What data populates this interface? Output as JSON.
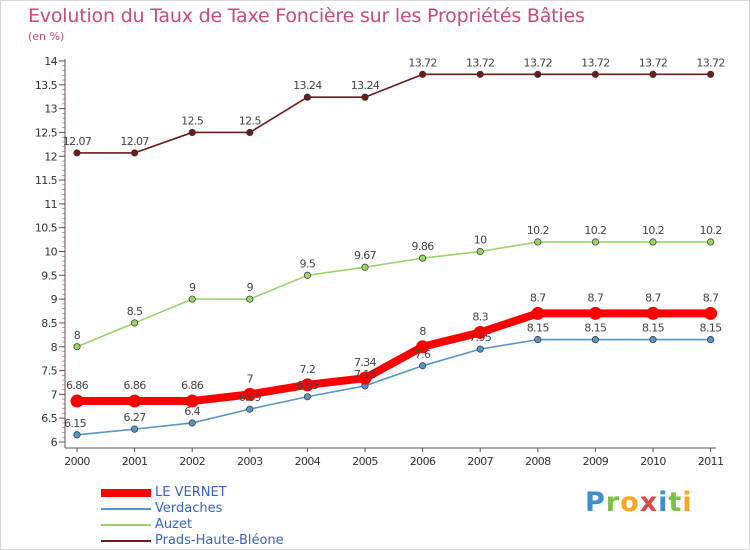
{
  "title": "Evolution du Taux de Taxe Foncière sur les Propriétés Bâties",
  "unit_label": "(en %)",
  "logo_text": "Proxiti",
  "chart_data": {
    "type": "line",
    "title": "Evolution du Taux de Taxe Foncière sur les Propriétés Bâties",
    "ylabel": "(en %)",
    "xlabel": "",
    "x": [
      "2000",
      "2001",
      "2002",
      "2003",
      "2004",
      "2005",
      "2006",
      "2007",
      "2008",
      "2009",
      "2010",
      "2011"
    ],
    "ylim": [
      6,
      14
    ],
    "yticks": [
      "6",
      "6.5",
      "7",
      "7.5",
      "8",
      "8.5",
      "9",
      "9.5",
      "10",
      "10.5",
      "11",
      "11.5",
      "12",
      "12.5",
      "13",
      "13.5",
      "14"
    ],
    "grid": false,
    "legend_position": "bottom-left",
    "series": [
      {
        "name": "Prads-Haute-Bléone",
        "color": "#6b1b1b",
        "values": [
          12.07,
          12.07,
          12.5,
          12.5,
          13.24,
          13.24,
          13.72,
          13.72,
          13.72,
          13.72,
          13.72,
          13.72
        ],
        "labels": [
          "12.07",
          "12.07",
          "12.5",
          "12.5",
          "13.24",
          "13.24",
          "13.72",
          "13.72",
          "13.72",
          "13.72",
          "13.72",
          "13.72"
        ]
      },
      {
        "name": "Auzet",
        "color": "#99d36a",
        "values": [
          8,
          8.5,
          9,
          9,
          9.5,
          9.67,
          9.86,
          10,
          10.2,
          10.2,
          10.2,
          10.2
        ],
        "labels": [
          "8",
          "8.5",
          "9",
          "9",
          "9.5",
          "9.67",
          "9.86",
          "10",
          "10.2",
          "10.2",
          "10.2",
          "10.2"
        ]
      },
      {
        "name": "Verdaches",
        "color": "#5a93c8",
        "values": [
          6.15,
          6.27,
          6.4,
          6.69,
          6.95,
          7.18,
          7.6,
          7.95,
          8.15,
          8.15,
          8.15,
          8.15
        ],
        "labels": [
          "6.15",
          "6.27",
          "6.4",
          "6.69",
          "6.95",
          "7.18",
          "7.6",
          "7.95",
          "8.15",
          "8.15",
          "8.15",
          "8.15"
        ]
      },
      {
        "name": "LE VERNET",
        "color": "#ff0000",
        "values": [
          6.86,
          6.86,
          6.86,
          7,
          7.2,
          7.34,
          8,
          8.3,
          8.7,
          8.7,
          8.7,
          8.7
        ],
        "labels": [
          "6.86",
          "6.86",
          "6.86",
          "7",
          "7.2",
          "7.34",
          "8",
          "8.3",
          "8.7",
          "8.7",
          "8.7",
          "8.7"
        ]
      }
    ],
    "legend": [
      "LE VERNET",
      "Verdaches",
      "Auzet",
      "Prads-Haute-Bléone"
    ]
  }
}
